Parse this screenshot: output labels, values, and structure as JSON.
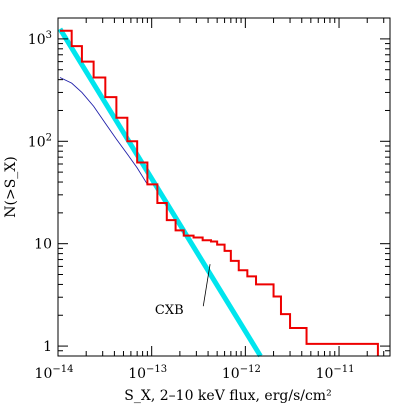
{
  "chart_data": {
    "type": "line",
    "title": "",
    "xlabel": "S_X, 2–10 keV flux, erg/s/cm²",
    "ylabel": "N(>S_X)",
    "xscale": "log",
    "yscale": "log",
    "xlim": [
      1e-14,
      3.5e-11
    ],
    "ylim": [
      0.8,
      1600
    ],
    "grid": false,
    "x_tick_labels": [
      {
        "base": "10",
        "exp": "−14"
      },
      {
        "base": "10",
        "exp": "−13"
      },
      {
        "base": "10",
        "exp": "−12"
      },
      {
        "base": "10",
        "exp": "−11"
      }
    ],
    "x_tick_values": [
      1e-14,
      1e-13,
      1e-12,
      1e-11
    ],
    "y_tick_labels": [
      {
        "base": "1",
        "exp": ""
      },
      {
        "base": "10",
        "exp": ""
      },
      {
        "base": "10",
        "exp": "2"
      },
      {
        "base": "10",
        "exp": "3"
      }
    ],
    "y_tick_values": [
      1,
      10,
      100,
      1000
    ],
    "annotations": [
      {
        "text": "CXB",
        "x": 1.7e-13,
        "y": 2.05,
        "points_to": [
          4.2e-13,
          6.3
        ]
      }
    ],
    "series": [
      {
        "color": "#ee0000",
        "kind": "step",
        "x": [
          1.05e-14,
          1.4e-14,
          1.8e-14,
          2.4e-14,
          3.2e-14,
          4.2e-14,
          5.5e-14,
          7e-14,
          9e-14,
          1.15e-13,
          1.45e-13,
          1.8e-13,
          2.2e-13,
          2.8e-13,
          3.5e-13,
          4.3e-13,
          5e-13,
          6e-13,
          7e-13,
          8.5e-13,
          1.05e-12,
          1.3e-12,
          1.6e-12,
          2e-12,
          2.4e-12,
          3e-12,
          4.5e-12,
          7e-12,
          1.1e-11,
          2.6e-11
        ],
        "y": [
          1200,
          850,
          600,
          420,
          270,
          170,
          100,
          62,
          38,
          25,
          17,
          13.5,
          12,
          11.5,
          10.8,
          10.5,
          9.8,
          8.5,
          6.8,
          5.5,
          4.8,
          4,
          4,
          3.05,
          2.05,
          1.5,
          1.05,
          1.05,
          1.05,
          0.8
        ]
      },
      {
        "color": "#00e5ee",
        "kind": "line",
        "x": [
          1.05e-14,
          1.45e-12
        ],
        "y": [
          1250,
          0.8
        ]
      },
      {
        "color": "#2020aa",
        "kind": "line",
        "x": [
          1.05e-14,
          1.4e-14,
          1.8e-14,
          2.4e-14,
          3.2e-14,
          4.2e-14,
          5.5e-14,
          7e-14,
          9e-14
        ],
        "y": [
          420,
          370,
          300,
          220,
          150,
          105,
          75,
          55,
          38
        ]
      }
    ]
  }
}
